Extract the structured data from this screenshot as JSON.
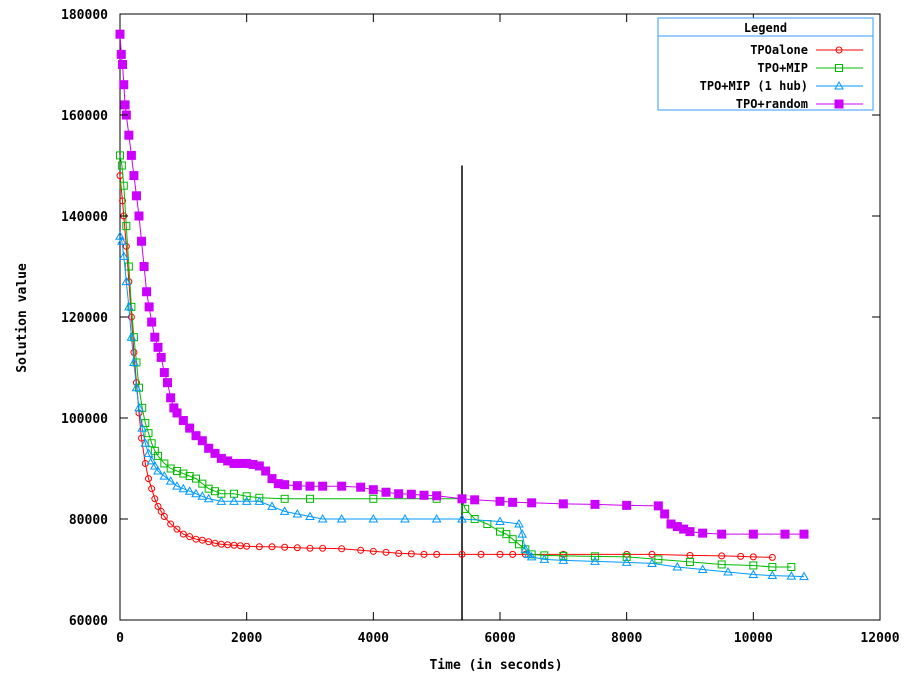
{
  "chart_data": {
    "type": "line",
    "xlabel": "Time (in seconds)",
    "ylabel": "Solution value",
    "xlim": [
      0,
      12000
    ],
    "ylim": [
      60000,
      180000
    ],
    "xticks": [
      0,
      2000,
      4000,
      6000,
      8000,
      10000,
      12000
    ],
    "yticks": [
      60000,
      80000,
      100000,
      120000,
      140000,
      160000,
      180000
    ],
    "grid": false,
    "legend": {
      "title": "Legend",
      "placement": "top-right"
    },
    "vline": {
      "x": 5400,
      "y_top": 150000
    },
    "series": [
      {
        "name": "TPOalone",
        "color": "#ff0000",
        "marker": "circle",
        "points": [
          [
            0,
            148000
          ],
          [
            40,
            143000
          ],
          [
            60,
            140000
          ],
          [
            100,
            134000
          ],
          [
            140,
            127000
          ],
          [
            180,
            120000
          ],
          [
            220,
            113000
          ],
          [
            260,
            107000
          ],
          [
            300,
            101000
          ],
          [
            340,
            96000
          ],
          [
            400,
            91000
          ],
          [
            450,
            88000
          ],
          [
            500,
            86000
          ],
          [
            550,
            84000
          ],
          [
            600,
            82500
          ],
          [
            650,
            81500
          ],
          [
            700,
            80500
          ],
          [
            800,
            79000
          ],
          [
            900,
            78000
          ],
          [
            1000,
            77000
          ],
          [
            1100,
            76500
          ],
          [
            1200,
            76000
          ],
          [
            1300,
            75800
          ],
          [
            1400,
            75500
          ],
          [
            1500,
            75200
          ],
          [
            1600,
            75000
          ],
          [
            1700,
            74900
          ],
          [
            1800,
            74800
          ],
          [
            1900,
            74700
          ],
          [
            2000,
            74600
          ],
          [
            2200,
            74500
          ],
          [
            2400,
            74500
          ],
          [
            2600,
            74400
          ],
          [
            2800,
            74300
          ],
          [
            3000,
            74200
          ],
          [
            3200,
            74200
          ],
          [
            3500,
            74100
          ],
          [
            3800,
            73800
          ],
          [
            4000,
            73600
          ],
          [
            4200,
            73400
          ],
          [
            4400,
            73200
          ],
          [
            4600,
            73100
          ],
          [
            4800,
            73000
          ],
          [
            5000,
            73000
          ],
          [
            5400,
            73000
          ],
          [
            5700,
            73000
          ],
          [
            6000,
            73000
          ],
          [
            6200,
            73000
          ],
          [
            6400,
            73000
          ],
          [
            7000,
            73000
          ],
          [
            8000,
            73000
          ],
          [
            8400,
            73000
          ],
          [
            9000,
            72800
          ],
          [
            9500,
            72700
          ],
          [
            9800,
            72600
          ],
          [
            10000,
            72500
          ],
          [
            10300,
            72400
          ]
        ]
      },
      {
        "name": "TPO+MIP",
        "color": "#00bb00",
        "marker": "square",
        "points": [
          [
            0,
            152000
          ],
          [
            30,
            150000
          ],
          [
            60,
            146000
          ],
          [
            100,
            138000
          ],
          [
            140,
            130000
          ],
          [
            180,
            122000
          ],
          [
            220,
            116000
          ],
          [
            260,
            111000
          ],
          [
            300,
            106000
          ],
          [
            350,
            102000
          ],
          [
            400,
            99000
          ],
          [
            450,
            97000
          ],
          [
            500,
            95000
          ],
          [
            550,
            93500
          ],
          [
            600,
            92500
          ],
          [
            700,
            91000
          ],
          [
            800,
            90000
          ],
          [
            900,
            89500
          ],
          [
            1000,
            89000
          ],
          [
            1100,
            88500
          ],
          [
            1200,
            88000
          ],
          [
            1300,
            87000
          ],
          [
            1400,
            86000
          ],
          [
            1500,
            85500
          ],
          [
            1600,
            85000
          ],
          [
            1800,
            85000
          ],
          [
            2000,
            84500
          ],
          [
            2200,
            84200
          ],
          [
            2600,
            84000
          ],
          [
            3000,
            84000
          ],
          [
            4000,
            84000
          ],
          [
            5000,
            84000
          ],
          [
            5400,
            84000
          ],
          [
            5450,
            82000
          ],
          [
            5600,
            80000
          ],
          [
            5800,
            79000
          ],
          [
            6000,
            77500
          ],
          [
            6100,
            77000
          ],
          [
            6200,
            76000
          ],
          [
            6300,
            75000
          ],
          [
            6400,
            74000
          ],
          [
            6500,
            73000
          ],
          [
            6700,
            72800
          ],
          [
            7000,
            72700
          ],
          [
            7500,
            72600
          ],
          [
            8000,
            72500
          ],
          [
            8500,
            72000
          ],
          [
            9000,
            71500
          ],
          [
            9500,
            71000
          ],
          [
            10000,
            70800
          ],
          [
            10300,
            70500
          ],
          [
            10600,
            70500
          ]
        ]
      },
      {
        "name": "TPO+MIP (1 hub)",
        "color": "#0099ff",
        "marker": "triangle",
        "points": [
          [
            0,
            136000
          ],
          [
            30,
            135000
          ],
          [
            60,
            132000
          ],
          [
            100,
            127000
          ],
          [
            140,
            122000
          ],
          [
            180,
            116000
          ],
          [
            220,
            111000
          ],
          [
            260,
            106000
          ],
          [
            300,
            102000
          ],
          [
            350,
            98000
          ],
          [
            400,
            95000
          ],
          [
            450,
            93000
          ],
          [
            500,
            91500
          ],
          [
            550,
            90500
          ],
          [
            600,
            89500
          ],
          [
            700,
            88500
          ],
          [
            800,
            87500
          ],
          [
            900,
            86500
          ],
          [
            1000,
            86000
          ],
          [
            1100,
            85500
          ],
          [
            1200,
            85000
          ],
          [
            1300,
            84500
          ],
          [
            1400,
            84000
          ],
          [
            1600,
            83500
          ],
          [
            1800,
            83500
          ],
          [
            2000,
            83500
          ],
          [
            2200,
            83500
          ],
          [
            2400,
            82500
          ],
          [
            2600,
            81500
          ],
          [
            2800,
            81000
          ],
          [
            3000,
            80500
          ],
          [
            3200,
            80000
          ],
          [
            3500,
            80000
          ],
          [
            4000,
            80000
          ],
          [
            4500,
            80000
          ],
          [
            5000,
            80000
          ],
          [
            5400,
            80000
          ],
          [
            6000,
            79500
          ],
          [
            6300,
            79000
          ],
          [
            6350,
            77000
          ],
          [
            6400,
            74000
          ],
          [
            6450,
            73000
          ],
          [
            6500,
            72500
          ],
          [
            6700,
            72000
          ],
          [
            7000,
            71800
          ],
          [
            7500,
            71600
          ],
          [
            8000,
            71400
          ],
          [
            8400,
            71200
          ],
          [
            8800,
            70500
          ],
          [
            9200,
            70000
          ],
          [
            9600,
            69500
          ],
          [
            10000,
            69000
          ],
          [
            10300,
            68800
          ],
          [
            10600,
            68700
          ],
          [
            10800,
            68600
          ]
        ]
      },
      {
        "name": "TPO+random",
        "color": "#cc00ff",
        "marker": "filled-square",
        "points": [
          [
            0,
            176000
          ],
          [
            20,
            172000
          ],
          [
            40,
            170000
          ],
          [
            60,
            166000
          ],
          [
            80,
            162000
          ],
          [
            100,
            160000
          ],
          [
            140,
            156000
          ],
          [
            180,
            152000
          ],
          [
            220,
            148000
          ],
          [
            260,
            144000
          ],
          [
            300,
            140000
          ],
          [
            340,
            135000
          ],
          [
            380,
            130000
          ],
          [
            420,
            125000
          ],
          [
            460,
            122000
          ],
          [
            500,
            119000
          ],
          [
            550,
            116000
          ],
          [
            600,
            114000
          ],
          [
            650,
            112000
          ],
          [
            700,
            109000
          ],
          [
            750,
            107000
          ],
          [
            800,
            104000
          ],
          [
            850,
            102000
          ],
          [
            900,
            101000
          ],
          [
            1000,
            99500
          ],
          [
            1100,
            98000
          ],
          [
            1200,
            96500
          ],
          [
            1300,
            95500
          ],
          [
            1400,
            94000
          ],
          [
            1500,
            93000
          ],
          [
            1600,
            92000
          ],
          [
            1700,
            91500
          ],
          [
            1800,
            91000
          ],
          [
            1900,
            91000
          ],
          [
            2000,
            91000
          ],
          [
            2100,
            90800
          ],
          [
            2200,
            90500
          ],
          [
            2300,
            89500
          ],
          [
            2400,
            88000
          ],
          [
            2500,
            87000
          ],
          [
            2600,
            86800
          ],
          [
            2800,
            86600
          ],
          [
            3000,
            86500
          ],
          [
            3200,
            86500
          ],
          [
            3500,
            86500
          ],
          [
            3800,
            86300
          ],
          [
            4000,
            85800
          ],
          [
            4200,
            85300
          ],
          [
            4400,
            85000
          ],
          [
            4600,
            84900
          ],
          [
            4800,
            84700
          ],
          [
            5000,
            84600
          ],
          [
            5400,
            84000
          ],
          [
            5600,
            83800
          ],
          [
            6000,
            83500
          ],
          [
            6200,
            83300
          ],
          [
            6500,
            83200
          ],
          [
            7000,
            83000
          ],
          [
            7500,
            82900
          ],
          [
            8000,
            82700
          ],
          [
            8500,
            82600
          ],
          [
            8600,
            81000
          ],
          [
            8700,
            79000
          ],
          [
            8800,
            78500
          ],
          [
            8900,
            78000
          ],
          [
            9000,
            77500
          ],
          [
            9200,
            77200
          ],
          [
            9500,
            77000
          ],
          [
            10000,
            77000
          ],
          [
            10500,
            77000
          ],
          [
            10800,
            77000
          ]
        ]
      }
    ]
  }
}
